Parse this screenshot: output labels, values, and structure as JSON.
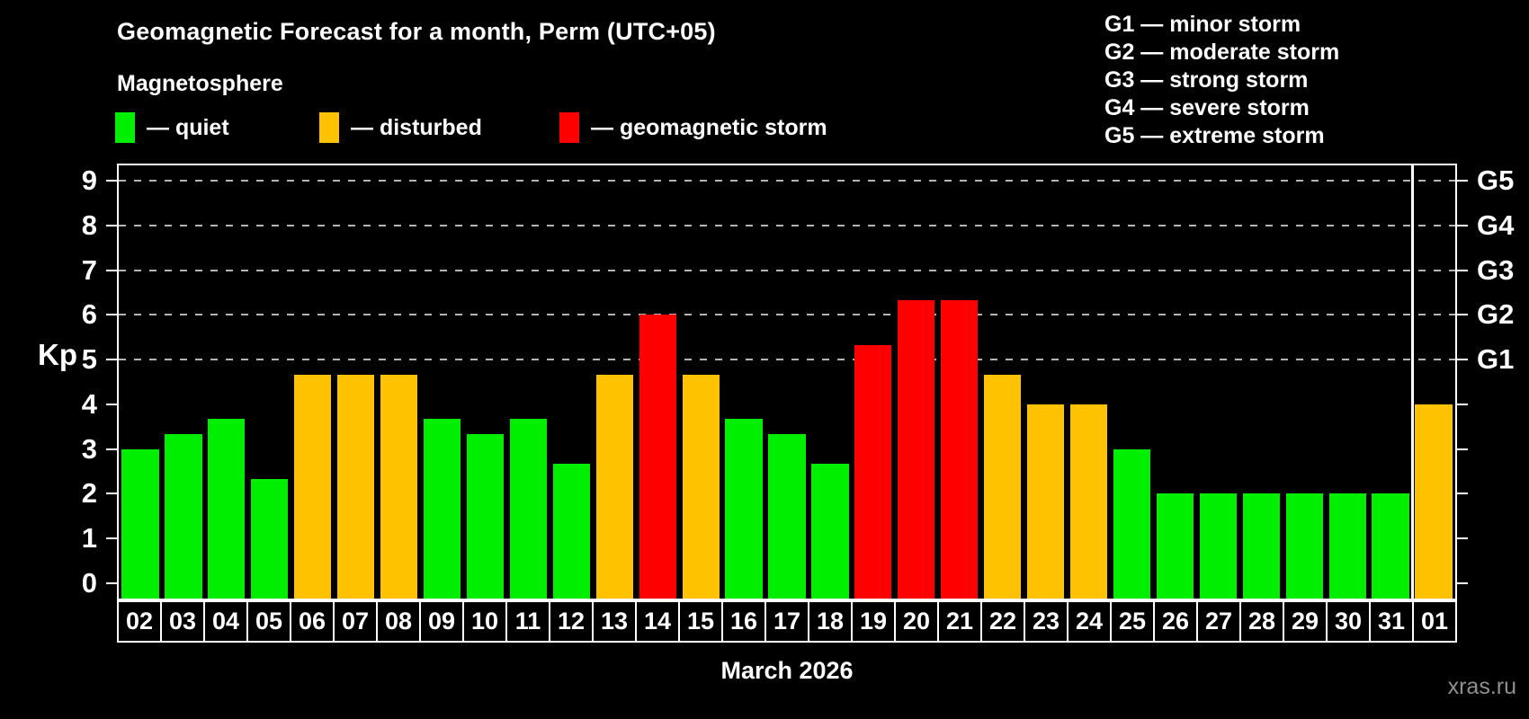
{
  "header": {
    "title": "Geomagnetic Forecast for a month, Perm (UTC+05)",
    "subtitle": "Magnetosphere",
    "legend": [
      {
        "key": "quiet",
        "label": "— quiet",
        "color": "#00ee00"
      },
      {
        "key": "disturbed",
        "label": "— disturbed",
        "color": "#ffc200"
      },
      {
        "key": "storm",
        "label": "— geomagnetic storm",
        "color": "#ff0000"
      }
    ],
    "g_scale_legend": [
      "G1 — minor storm",
      "G2 — moderate storm",
      "G3 — strong storm",
      "G4 — severe storm",
      "G5 — extreme storm"
    ]
  },
  "chart_data": {
    "type": "bar",
    "title": "Geomagnetic Forecast for a month, Perm (UTC+05)",
    "ylabel": "Kp",
    "xlabel": "March 2026",
    "ylim": [
      0,
      9
    ],
    "yticks": [
      0,
      1,
      2,
      3,
      4,
      5,
      6,
      7,
      8,
      9
    ],
    "grid": "dashed horizontal lines at Kp 5-9",
    "gridlines_at": [
      5,
      6,
      7,
      8,
      9
    ],
    "right_axis": [
      {
        "kp": 5,
        "label": "G1"
      },
      {
        "kp": 6,
        "label": "G2"
      },
      {
        "kp": 7,
        "label": "G3"
      },
      {
        "kp": 8,
        "label": "G4"
      },
      {
        "kp": 9,
        "label": "G5"
      }
    ],
    "legend_position": "top",
    "categories": [
      "02",
      "03",
      "04",
      "05",
      "06",
      "07",
      "08",
      "09",
      "10",
      "11",
      "12",
      "13",
      "14",
      "15",
      "16",
      "17",
      "18",
      "19",
      "20",
      "21",
      "22",
      "23",
      "24",
      "25",
      "26",
      "27",
      "28",
      "29",
      "30",
      "31",
      "01"
    ],
    "values": [
      3,
      3.33,
      3.67,
      2.33,
      4.67,
      4.67,
      4.67,
      3.67,
      3.33,
      3.67,
      2.67,
      4.67,
      6,
      4.67,
      3.67,
      3.33,
      2.67,
      5.33,
      6.33,
      6.33,
      4.67,
      4,
      4,
      3,
      2,
      2,
      2,
      2,
      2,
      2,
      4
    ],
    "statuses": [
      "quiet",
      "quiet",
      "quiet",
      "quiet",
      "disturbed",
      "disturbed",
      "disturbed",
      "quiet",
      "quiet",
      "quiet",
      "quiet",
      "disturbed",
      "storm",
      "disturbed",
      "quiet",
      "quiet",
      "quiet",
      "storm",
      "storm",
      "storm",
      "disturbed",
      "disturbed",
      "disturbed",
      "quiet",
      "quiet",
      "quiet",
      "quiet",
      "quiet",
      "quiet",
      "quiet",
      "disturbed"
    ],
    "colors_by_status": {
      "quiet": "#00ee00",
      "disturbed": "#ffc200",
      "storm": "#ff0000"
    },
    "month_separator_before_category": "01"
  },
  "footer": {
    "watermark": "xras.ru"
  }
}
